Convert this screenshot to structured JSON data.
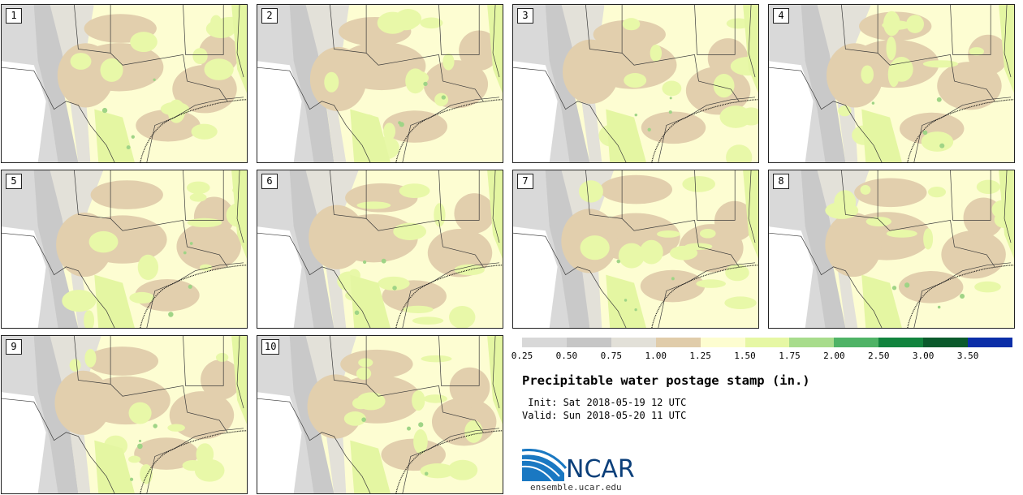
{
  "panels": [
    {
      "label": "1"
    },
    {
      "label": "2"
    },
    {
      "label": "3"
    },
    {
      "label": "4"
    },
    {
      "label": "5"
    },
    {
      "label": "6"
    },
    {
      "label": "7"
    },
    {
      "label": "8"
    },
    {
      "label": "9"
    },
    {
      "label": "10"
    }
  ],
  "colorbar": {
    "colors": [
      "#d8d8d8",
      "#c6c6c6",
      "#e2e0d8",
      "#e0ccaa",
      "#fdfdd0",
      "#e6f7a4",
      "#a8dc8c",
      "#4fb366",
      "#12843e",
      "#0b5a2c",
      "#0b2ea8"
    ],
    "ticks": [
      "0.25",
      "0.50",
      "0.75",
      "1.00",
      "1.25",
      "1.50",
      "1.75",
      "2.00",
      "2.50",
      "3.00",
      "3.50"
    ]
  },
  "title": "Precipitable water postage stamp (in.)",
  "init_text": " Init: Sat 2018-05-19 12 UTC",
  "valid_text": "Valid: Sun 2018-05-20 11 UTC",
  "logo": {
    "text": "NCAR",
    "color": "#0b3f7a"
  },
  "site": "ensemble.ucar.edu"
}
